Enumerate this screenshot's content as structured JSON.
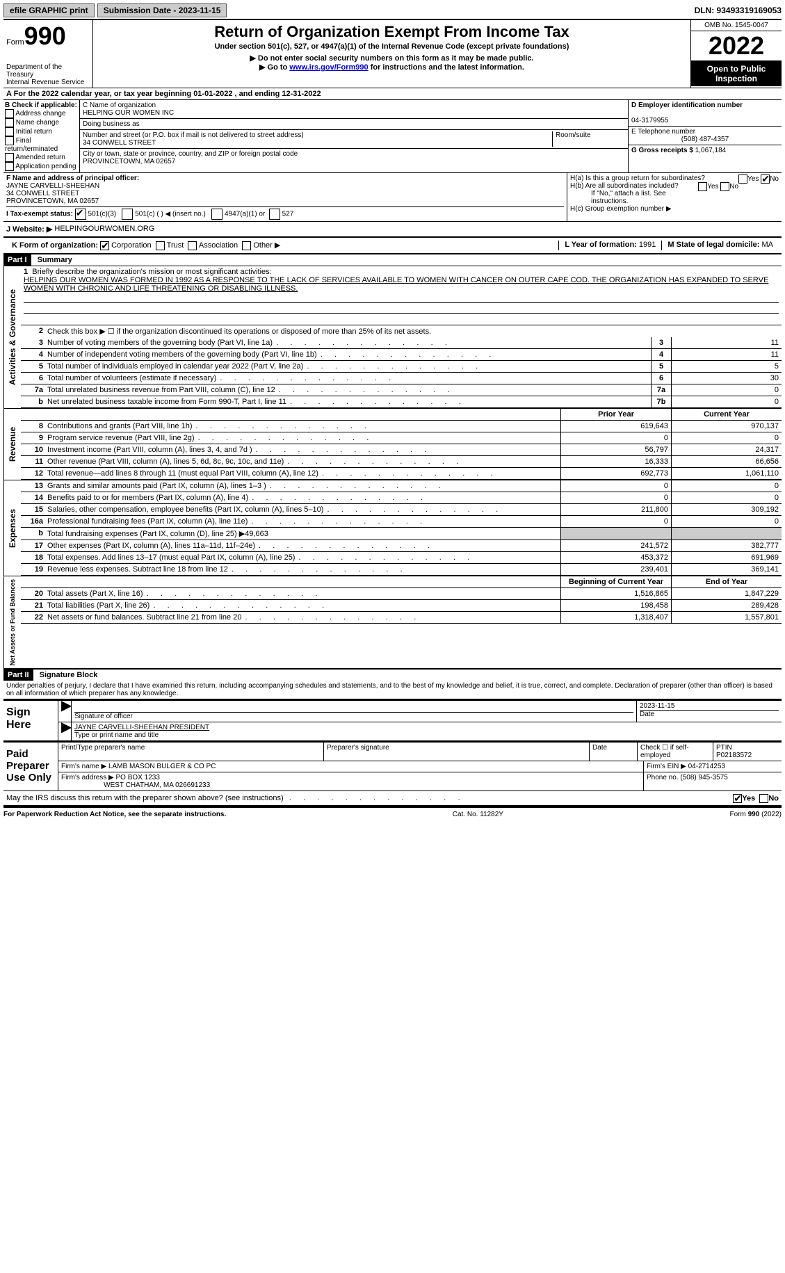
{
  "topbar": {
    "efile": "efile GRAPHIC print",
    "submission_label": "Submission Date - 2023-11-15",
    "dln": "DLN: 93493319169053"
  },
  "header": {
    "form_word": "Form",
    "form_num": "990",
    "title": "Return of Organization Exempt From Income Tax",
    "subtitle": "Under section 501(c), 527, or 4947(a)(1) of the Internal Revenue Code (except private foundations)",
    "note1": "▶ Do not enter social security numbers on this form as it may be made public.",
    "note2_pre": "▶ Go to ",
    "note2_link": "www.irs.gov/Form990",
    "note2_post": " for instructions and the latest information.",
    "dept": "Department of the Treasury\nInternal Revenue Service",
    "omb": "OMB No. 1545-0047",
    "year": "2022",
    "open": "Open to Public Inspection"
  },
  "rowA": "A For the 2022 calendar year, or tax year beginning 01-01-2022   , and ending 12-31-2022",
  "colB": {
    "title": "B Check if applicable:",
    "opts": [
      "Address change",
      "Name change",
      "Initial return",
      "Final return/terminated",
      "Amended return",
      "Application pending"
    ]
  },
  "colC": {
    "name_label": "C Name of organization",
    "name": "HELPING OUR WOMEN INC",
    "dba_label": "Doing business as",
    "addr_label": "Number and street (or P.O. box if mail is not delivered to street address)",
    "room_label": "Room/suite",
    "addr": "34 CONWELL STREET",
    "city_label": "City or town, state or province, country, and ZIP or foreign postal code",
    "city": "PROVINCETOWN, MA  02657"
  },
  "colD": {
    "ein_label": "D Employer identification number",
    "ein": "04-3179955",
    "tel_label": "E Telephone number",
    "tel": "(508) 487-4357",
    "gross_label": "G Gross receipts $",
    "gross": "1,067,184"
  },
  "rowF": {
    "label": "F Name and address of principal officer:",
    "name": "JAYNE CARVELLI-SHEEHAN",
    "addr1": "34 CONWELL STREET",
    "addr2": "PROVINCETOWN, MA  02657"
  },
  "rowH": {
    "a": "H(a)  Is this a group return for subordinates?",
    "b": "H(b)  Are all subordinates included?",
    "note": "If \"No,\" attach a list. See instructions.",
    "c": "H(c)  Group exemption number ▶"
  },
  "rowI": {
    "label": "I   Tax-exempt status:",
    "o1": "501(c)(3)",
    "o2": "501(c) (  ) ◀ (insert no.)",
    "o3": "4947(a)(1) or",
    "o4": "527"
  },
  "rowJ": {
    "label": "J   Website: ▶",
    "val": "HELPINGOURWOMEN.ORG"
  },
  "rowK": {
    "label": "K Form of organization:",
    "o1": "Corporation",
    "o2": "Trust",
    "o3": "Association",
    "o4": "Other ▶",
    "l_label": "L Year of formation:",
    "l_val": "1991",
    "m_label": "M State of legal domicile:",
    "m_val": "MA"
  },
  "part1": {
    "hdr": "Part I",
    "title": "Summary",
    "q1": "Briefly describe the organization's mission or most significant activities:",
    "mission": "HELPING OUR WOMEN WAS FORMED IN 1992 AS A RESPONSE TO THE LACK OF SERVICES AVAILABLE TO WOMEN WITH CANCER ON OUTER CAPE COD. THE ORGANIZATION HAS EXPANDED TO SERVE WOMEN WITH CHRONIC AND LIFE THREATENING OR DISABLING ILLNESS.",
    "q2": "Check this box ▶ ☐ if the organization discontinued its operations or disposed of more than 25% of its net assets.",
    "vert1": "Activities & Governance",
    "vert2": "Revenue",
    "vert3": "Expenses",
    "vert4": "Net Assets or Fund Balances",
    "hdr_prior": "Prior Year",
    "hdr_curr": "Current Year",
    "hdr_begin": "Beginning of Current Year",
    "hdr_end": "End of Year",
    "lines_gov": [
      {
        "n": "3",
        "t": "Number of voting members of the governing body (Part VI, line 1a)",
        "box": "3",
        "v": "11"
      },
      {
        "n": "4",
        "t": "Number of independent voting members of the governing body (Part VI, line 1b)",
        "box": "4",
        "v": "11"
      },
      {
        "n": "5",
        "t": "Total number of individuals employed in calendar year 2022 (Part V, line 2a)",
        "box": "5",
        "v": "5"
      },
      {
        "n": "6",
        "t": "Total number of volunteers (estimate if necessary)",
        "box": "6",
        "v": "30"
      },
      {
        "n": "7a",
        "t": "Total unrelated business revenue from Part VIII, column (C), line 12",
        "box": "7a",
        "v": "0"
      },
      {
        "n": "b",
        "t": "Net unrelated business taxable income from Form 990-T, Part I, line 11",
        "box": "7b",
        "v": "0"
      }
    ],
    "lines_rev": [
      {
        "n": "8",
        "t": "Contributions and grants (Part VIII, line 1h)",
        "p": "619,643",
        "c": "970,137"
      },
      {
        "n": "9",
        "t": "Program service revenue (Part VIII, line 2g)",
        "p": "0",
        "c": "0"
      },
      {
        "n": "10",
        "t": "Investment income (Part VIII, column (A), lines 3, 4, and 7d )",
        "p": "56,797",
        "c": "24,317"
      },
      {
        "n": "11",
        "t": "Other revenue (Part VIII, column (A), lines 5, 6d, 8c, 9c, 10c, and 11e)",
        "p": "16,333",
        "c": "66,656"
      },
      {
        "n": "12",
        "t": "Total revenue—add lines 8 through 11 (must equal Part VIII, column (A), line 12)",
        "p": "692,773",
        "c": "1,061,110"
      }
    ],
    "lines_exp": [
      {
        "n": "13",
        "t": "Grants and similar amounts paid (Part IX, column (A), lines 1–3 )",
        "p": "0",
        "c": "0"
      },
      {
        "n": "14",
        "t": "Benefits paid to or for members (Part IX, column (A), line 4)",
        "p": "0",
        "c": "0"
      },
      {
        "n": "15",
        "t": "Salaries, other compensation, employee benefits (Part IX, column (A), lines 5–10)",
        "p": "211,800",
        "c": "309,192"
      },
      {
        "n": "16a",
        "t": "Professional fundraising fees (Part IX, column (A), line 11e)",
        "p": "0",
        "c": "0"
      }
    ],
    "line16b": {
      "n": "b",
      "t": "Total fundraising expenses (Part IX, column (D), line 25) ▶49,663"
    },
    "lines_exp2": [
      {
        "n": "17",
        "t": "Other expenses (Part IX, column (A), lines 11a–11d, 11f–24e)",
        "p": "241,572",
        "c": "382,777"
      },
      {
        "n": "18",
        "t": "Total expenses. Add lines 13–17 (must equal Part IX, column (A), line 25)",
        "p": "453,372",
        "c": "691,969"
      },
      {
        "n": "19",
        "t": "Revenue less expenses. Subtract line 18 from line 12",
        "p": "239,401",
        "c": "369,141"
      }
    ],
    "lines_net": [
      {
        "n": "20",
        "t": "Total assets (Part X, line 16)",
        "p": "1,516,865",
        "c": "1,847,229"
      },
      {
        "n": "21",
        "t": "Total liabilities (Part X, line 26)",
        "p": "198,458",
        "c": "289,428"
      },
      {
        "n": "22",
        "t": "Net assets or fund balances. Subtract line 21 from line 20",
        "p": "1,318,407",
        "c": "1,557,801"
      }
    ]
  },
  "part2": {
    "hdr": "Part II",
    "title": "Signature Block",
    "decl": "Under penalties of perjury, I declare that I have examined this return, including accompanying schedules and statements, and to the best of my knowledge and belief, it is true, correct, and complete. Declaration of preparer (other than officer) is based on all information of which preparer has any knowledge.",
    "sign_here": "Sign Here",
    "sig_officer": "Signature of officer",
    "sig_date": "2023-11-15",
    "date_label": "Date",
    "officer_name": "JAYNE CARVELLI-SHEEHAN  PRESIDENT",
    "type_label": "Type or print name and title",
    "paid": "Paid Preparer Use Only",
    "h1": "Print/Type preparer's name",
    "h2": "Preparer's signature",
    "h3": "Date",
    "h4_a": "Check ☐ if self-employed",
    "h5": "PTIN",
    "ptin": "P02183572",
    "firm_label": "Firm's name    ▶",
    "firm": "LAMB MASON BULGER & CO PC",
    "firm_ein_label": "Firm's EIN ▶",
    "firm_ein": "04-2714253",
    "firm_addr_label": "Firm's address ▶",
    "firm_addr1": "PO BOX 1233",
    "firm_addr2": "WEST CHATHAM, MA  026691233",
    "phone_label": "Phone no.",
    "phone": "(508) 945-3575",
    "discuss": "May the IRS discuss this return with the preparer shown above? (see instructions)"
  },
  "footer": {
    "left": "For Paperwork Reduction Act Notice, see the separate instructions.",
    "mid": "Cat. No. 11282Y",
    "right": "Form 990 (2022)"
  },
  "yn": {
    "yes": "Yes",
    "no": "No"
  }
}
